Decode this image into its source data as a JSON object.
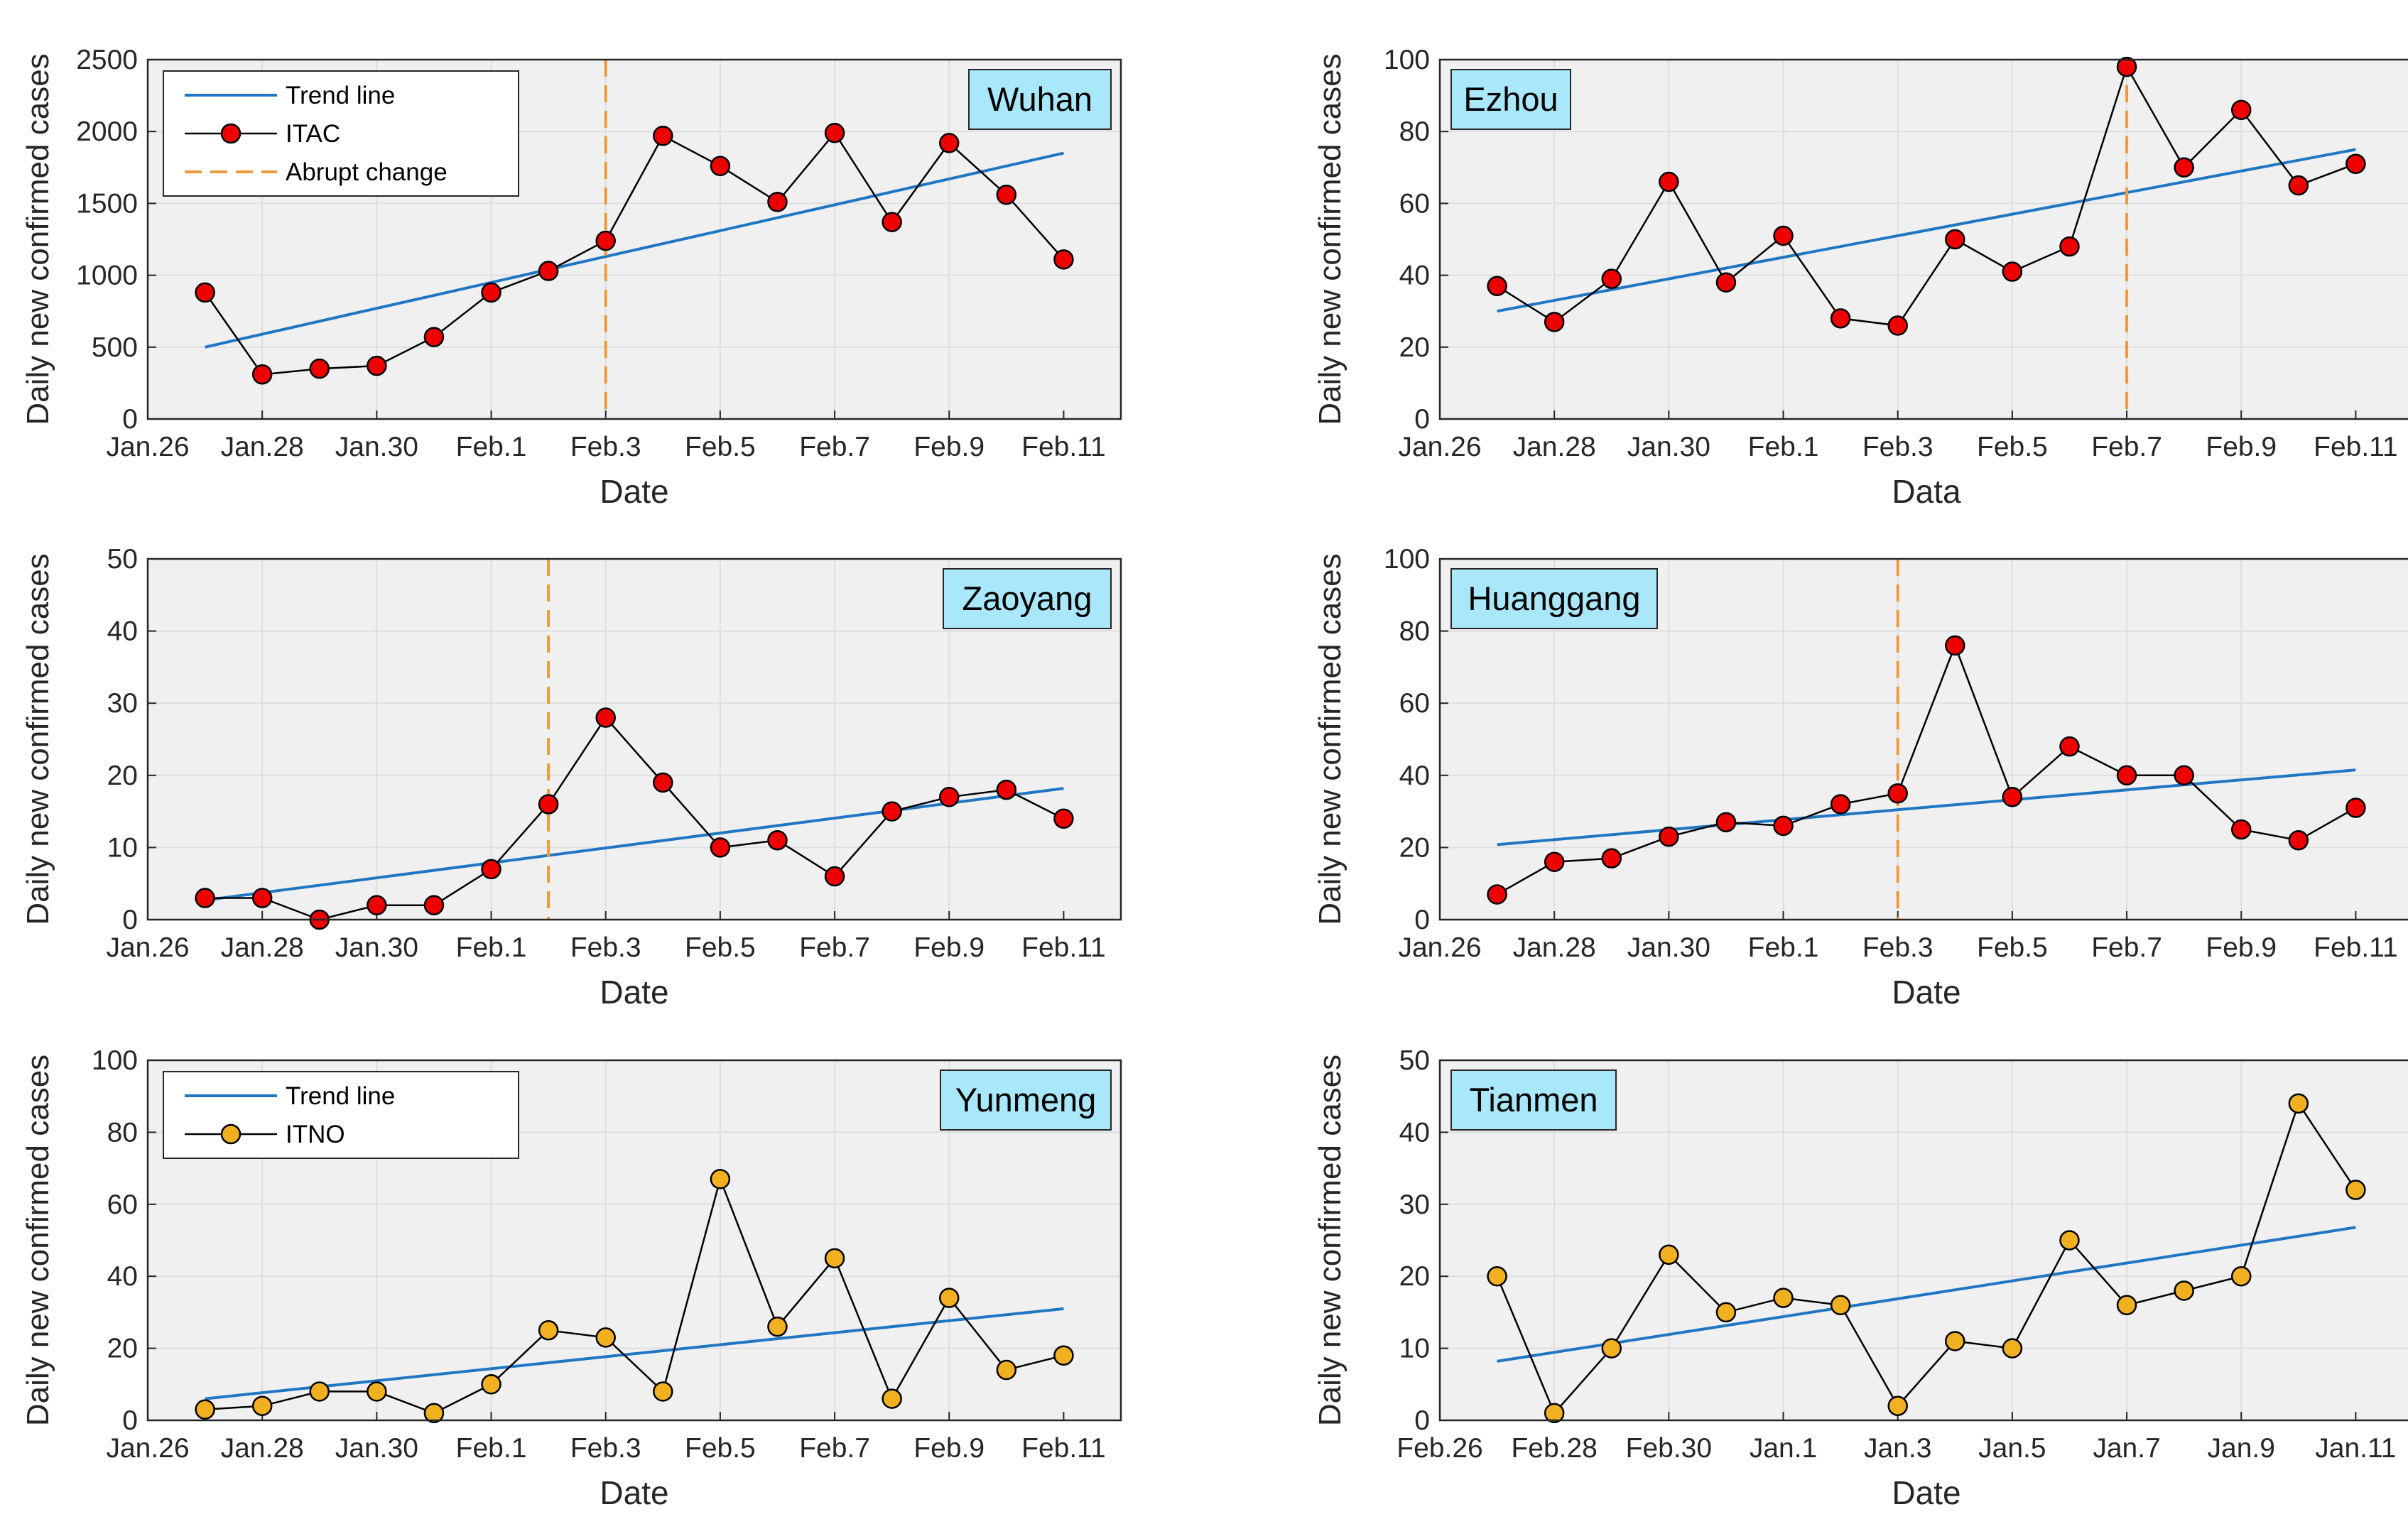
{
  "colors": {
    "trend": "#1f77c4",
    "itac_fill": "#ee0000",
    "itno_fill": "#f0b020",
    "abrupt": "#ee9a3a",
    "plot_bg": "#f0f0f0",
    "grid": "#dedede",
    "label_bg": "#a8e8fa"
  },
  "chart_data": [
    {
      "type": "line",
      "title": "Wuhan",
      "xlabel": "Date",
      "ylabel": "Daily new confirmed cases",
      "x_ticks": [
        "Jan.26",
        "Jan.28",
        "Jan.30",
        "Feb.1",
        "Feb.3",
        "Feb.5",
        "Feb.7",
        "Feb.9",
        "Feb.11"
      ],
      "xlim": [
        26,
        43
      ],
      "ylim": [
        0,
        2500
      ],
      "y_ticks": [
        0,
        500,
        1000,
        1500,
        2000,
        2500
      ],
      "grid": true,
      "legend": "top-left",
      "series": [
        {
          "name": "Trend line",
          "kind": "trend",
          "x": [
            27,
            42
          ],
          "y": [
            500,
            1850
          ]
        },
        {
          "name": "ITAC",
          "kind": "itac",
          "x": [
            27,
            28,
            29,
            30,
            31,
            32,
            33,
            34,
            35,
            36,
            37,
            38,
            39,
            40,
            41,
            42
          ],
          "y": [
            880,
            310,
            350,
            370,
            570,
            880,
            1030,
            1240,
            1970,
            1760,
            1510,
            1990,
            1370,
            1920,
            1560,
            1110
          ]
        },
        {
          "name": "Abrupt change",
          "kind": "abrupt",
          "x": [
            34.0
          ]
        }
      ]
    },
    {
      "type": "line",
      "title": "Ezhou",
      "xlabel": "Data",
      "ylabel": "Daily new confirmed cases",
      "x_ticks": [
        "Jan.26",
        "Jan.28",
        "Jan.30",
        "Feb.1",
        "Feb.3",
        "Feb.5",
        "Feb.7",
        "Feb.9",
        "Feb.11"
      ],
      "xlim": [
        26,
        43
      ],
      "ylim": [
        0,
        100
      ],
      "y_ticks": [
        0,
        20,
        40,
        60,
        80,
        100
      ],
      "grid": true,
      "series": [
        {
          "name": "Trend line",
          "kind": "trend",
          "x": [
            27,
            42
          ],
          "y": [
            30,
            75
          ]
        },
        {
          "name": "ITAC",
          "kind": "itac",
          "x": [
            27,
            28,
            29,
            30,
            31,
            32,
            33,
            34,
            35,
            36,
            37,
            38,
            39,
            40,
            41,
            42
          ],
          "y": [
            37,
            27,
            39,
            66,
            38,
            51,
            28,
            26,
            50,
            41,
            48,
            98,
            70,
            86,
            65,
            71
          ]
        },
        {
          "name": "Abrupt change",
          "kind": "abrupt",
          "x": [
            38.0
          ]
        }
      ]
    },
    {
      "type": "line",
      "title": "Zaoyang",
      "xlabel": "Date",
      "ylabel": "Daily new confirmed cases",
      "x_ticks": [
        "Jan.26",
        "Jan.28",
        "Jan.30",
        "Feb.1",
        "Feb.3",
        "Feb.5",
        "Feb.7",
        "Feb.9",
        "Feb.11"
      ],
      "xlim": [
        26,
        43
      ],
      "ylim": [
        0,
        50
      ],
      "y_ticks": [
        0,
        10,
        20,
        30,
        40,
        50
      ],
      "grid": true,
      "series": [
        {
          "name": "Trend line",
          "kind": "trend",
          "x": [
            27,
            42
          ],
          "y": [
            2.7,
            18.2
          ]
        },
        {
          "name": "ITAC",
          "kind": "itac",
          "x": [
            27,
            28,
            29,
            30,
            31,
            32,
            33,
            34,
            35,
            36,
            37,
            38,
            39,
            40,
            41,
            42
          ],
          "y": [
            3,
            3,
            0,
            2,
            2,
            7,
            16,
            28,
            19,
            10,
            11,
            6,
            15,
            17,
            18,
            14
          ]
        },
        {
          "name": "Abrupt change",
          "kind": "abrupt",
          "x": [
            33.0
          ]
        }
      ]
    },
    {
      "type": "line",
      "title": "Huanggang",
      "xlabel": "Date",
      "ylabel": "Daily new confirmed cases",
      "x_ticks": [
        "Jan.26",
        "Jan.28",
        "Jan.30",
        "Feb.1",
        "Feb.3",
        "Feb.5",
        "Feb.7",
        "Feb.9",
        "Feb.11"
      ],
      "xlim": [
        26,
        43
      ],
      "ylim": [
        0,
        100
      ],
      "y_ticks": [
        0,
        20,
        40,
        60,
        80,
        100
      ],
      "grid": true,
      "series": [
        {
          "name": "Trend line",
          "kind": "trend",
          "x": [
            27,
            42
          ],
          "y": [
            20.8,
            41.5
          ]
        },
        {
          "name": "ITAC",
          "kind": "itac",
          "x": [
            27,
            28,
            29,
            30,
            31,
            32,
            33,
            34,
            35,
            36,
            37,
            38,
            39,
            40,
            41,
            42
          ],
          "y": [
            7,
            16,
            17,
            23,
            27,
            26,
            32,
            35,
            76,
            34,
            48,
            40,
            40,
            25,
            22,
            31
          ]
        },
        {
          "name": "Abrupt change",
          "kind": "abrupt",
          "x": [
            34.0
          ]
        }
      ]
    },
    {
      "type": "line",
      "title": "Yunmeng",
      "xlabel": "Date",
      "ylabel": "Daily new confirmed cases",
      "x_ticks": [
        "Jan.26",
        "Jan.28",
        "Jan.30",
        "Feb.1",
        "Feb.3",
        "Feb.5",
        "Feb.7",
        "Feb.9",
        "Feb.11"
      ],
      "xlim": [
        26,
        43
      ],
      "ylim": [
        0,
        100
      ],
      "y_ticks": [
        0,
        20,
        40,
        60,
        80,
        100
      ],
      "grid": true,
      "legend": "top-left",
      "series": [
        {
          "name": "Trend line",
          "kind": "trend",
          "x": [
            27,
            42
          ],
          "y": [
            6,
            31
          ]
        },
        {
          "name": "ITNO",
          "kind": "itno",
          "x": [
            27,
            28,
            29,
            30,
            31,
            32,
            33,
            34,
            35,
            36,
            37,
            38,
            39,
            40,
            41,
            42
          ],
          "y": [
            3,
            4,
            8,
            8,
            2,
            10,
            25,
            23,
            8,
            67,
            26,
            45,
            6,
            34,
            14,
            18
          ]
        }
      ]
    },
    {
      "type": "line",
      "title": "Tianmen",
      "xlabel": "Date",
      "ylabel": "Daily new confirmed cases",
      "x_ticks": [
        "Feb.26",
        "Feb.28",
        "Feb.30",
        "Jan.1",
        "Jan.3",
        "Jan.5",
        "Jan.7",
        "Jan.9",
        "Jan.11"
      ],
      "xlim": [
        26,
        43
      ],
      "ylim": [
        0,
        50
      ],
      "y_ticks": [
        0,
        10,
        20,
        30,
        40,
        50
      ],
      "grid": true,
      "series": [
        {
          "name": "Trend line",
          "kind": "trend",
          "x": [
            27,
            42
          ],
          "y": [
            8.2,
            26.8
          ]
        },
        {
          "name": "ITNO",
          "kind": "itno",
          "x": [
            27,
            28,
            29,
            30,
            31,
            32,
            33,
            34,
            35,
            36,
            37,
            38,
            39,
            40,
            41,
            42
          ],
          "y": [
            20,
            1,
            10,
            23,
            15,
            17,
            16,
            2,
            11,
            10,
            25,
            16,
            18,
            20,
            44,
            32
          ]
        }
      ]
    }
  ]
}
